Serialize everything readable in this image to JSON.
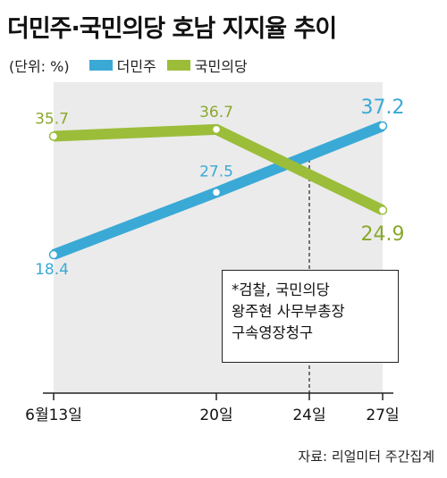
{
  "title": "더민주·국민의당 호남 지지율 추이",
  "unit": "(단위: %)",
  "source": "자료: 리얼미터 주간집계",
  "note": {
    "lines": [
      "*검찰, 국민의당",
      "왕주현 사무부총장",
      "구속영장청구"
    ]
  },
  "colors": {
    "minjoo": "#3aa9d6",
    "peoples": "#9bbd3a",
    "plot_bg": "#ebebeb"
  },
  "chart_data": {
    "type": "line",
    "title": "더민주·국민의당 호남 지지율 추이",
    "ylabel": "(단위: %)",
    "xlabel": "",
    "categories": [
      "6월13일",
      "20일",
      "24일",
      "27일"
    ],
    "ylim": [
      10,
      40
    ],
    "grid": false,
    "legend": "top-left",
    "series": [
      {
        "name": "더민주",
        "color": "#3aa9d6",
        "points": [
          {
            "x": "6월13일",
            "y": 18.4,
            "label": "18.4"
          },
          {
            "x": "20일",
            "y": 27.5,
            "label": "27.5"
          },
          {
            "x": "27일",
            "y": 37.2,
            "label": "37.2"
          }
        ]
      },
      {
        "name": "국민의당",
        "color": "#9bbd3a",
        "points": [
          {
            "x": "6월13일",
            "y": 35.7,
            "label": "35.7"
          },
          {
            "x": "20일",
            "y": 36.7,
            "label": "36.7"
          },
          {
            "x": "27일",
            "y": 24.9,
            "label": "24.9"
          }
        ]
      }
    ],
    "annotations": [
      {
        "x": "24일",
        "text": "*검찰, 국민의당 왕주현 사무부총장 구속영장청구"
      }
    ]
  }
}
